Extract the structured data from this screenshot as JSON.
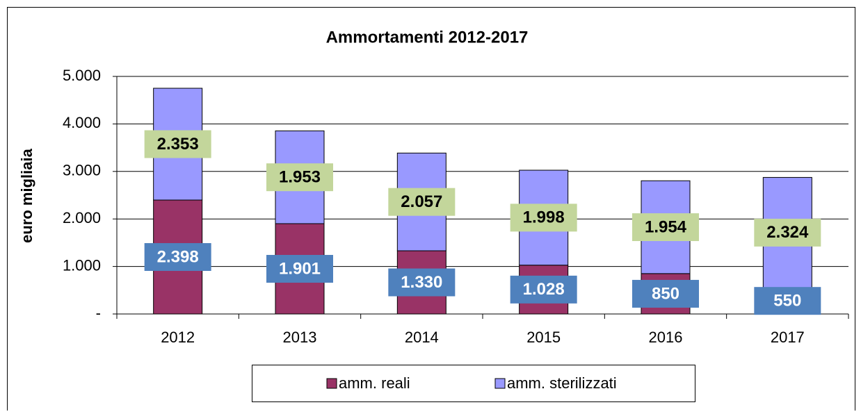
{
  "chart_data": {
    "type": "stacked_bar",
    "title": "Ammortamenti  2012-2017",
    "y_axis_label": "euro migliaia",
    "categories": [
      "2012",
      "2013",
      "2014",
      "2015",
      "2016",
      "2017"
    ],
    "series": [
      {
        "name": "amm. reali",
        "color": "#993366",
        "values": [
          2398,
          1901,
          1330,
          1028,
          850,
          550
        ],
        "value_labels": [
          "2.398",
          "1.901",
          "1.330",
          "1.028",
          "850",
          "550"
        ],
        "label_color": "#4f81bd"
      },
      {
        "name": "amm. sterilizzati",
        "color": "#9999ff",
        "values": [
          2353,
          1953,
          2057,
          1998,
          1954,
          2324
        ],
        "value_labels": [
          "2.353",
          "1.953",
          "2.057",
          "1.998",
          "1.954",
          "2.324"
        ],
        "label_color": "#c3d69b"
      }
    ],
    "ylim": [
      0,
      5000
    ],
    "yticks": [
      {
        "value": 0,
        "label": "-"
      },
      {
        "value": 1000,
        "label": "1.000"
      },
      {
        "value": 2000,
        "label": "2.000"
      },
      {
        "value": 3000,
        "label": "3.000"
      },
      {
        "value": 4000,
        "label": "4.000"
      },
      {
        "value": 5000,
        "label": "5.000"
      }
    ],
    "grid": true,
    "legend": "bottom"
  }
}
